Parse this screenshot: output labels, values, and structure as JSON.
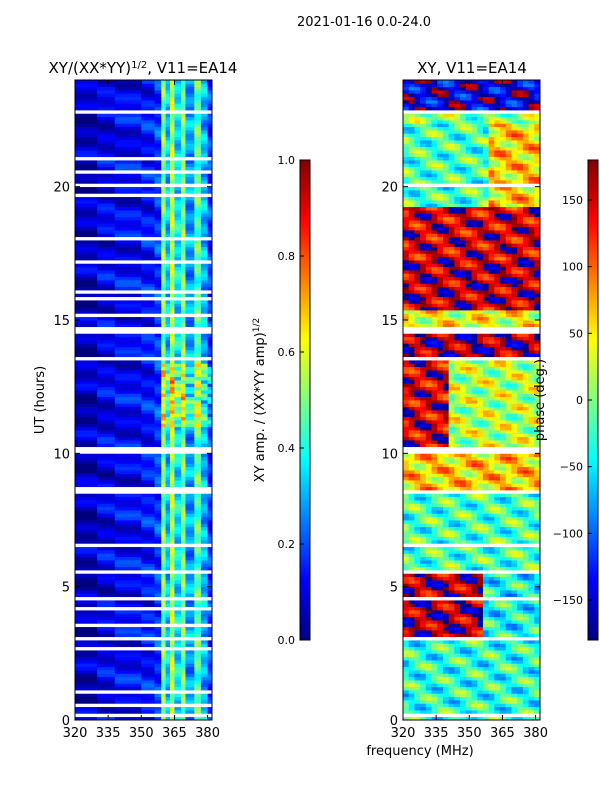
{
  "suptitle": "2021-01-16 0.0-24.0",
  "xlabel": "frequency (MHz)",
  "colors": {
    "masked_row": "#ffffff",
    "jet_stops": [
      "#00007f",
      "#0000ff",
      "#007fff",
      "#00ffff",
      "#7fff7f",
      "#ffff00",
      "#ff7f00",
      "#ff0000",
      "#7f0000"
    ]
  },
  "chart_data": [
    {
      "type": "heatmap",
      "title_main": "XY/(XX*YY)",
      "title_sup": "1/2",
      "title_suffix": ", V11=EA14",
      "xlabel": "",
      "ylabel": "UT (hours)",
      "x_range": [
        320,
        382
      ],
      "y_range": [
        0,
        24
      ],
      "xticks": [
        320,
        335,
        350,
        365,
        380
      ],
      "yticks": [
        0,
        5,
        10,
        15,
        20
      ],
      "colorbar": {
        "label_main": "XY amp. / (XX*YY amp)",
        "label_sup": "1/2",
        "range": [
          0.0,
          1.0
        ],
        "ticks": [
          "0.0",
          "0.2",
          "0.4",
          "0.6",
          "0.8",
          "1.0"
        ],
        "tick_values": [
          0.0,
          0.2,
          0.4,
          0.6,
          0.8,
          1.0
        ]
      },
      "masked_hour_bands": [
        [
          0.15,
          0.25
        ],
        [
          0.55,
          0.62
        ],
        [
          1.05,
          1.12
        ],
        [
          1.45,
          1.5
        ],
        [
          1.85,
          1.9
        ],
        [
          2.35,
          2.4
        ],
        [
          2.65,
          2.72
        ],
        [
          3.05,
          3.1
        ],
        [
          3.25,
          3.3
        ],
        [
          3.55,
          3.6
        ],
        [
          4.15,
          4.2
        ],
        [
          4.55,
          4.62
        ],
        [
          4.95,
          5.0
        ],
        [
          5.35,
          5.42
        ],
        [
          5.55,
          5.62
        ],
        [
          6.25,
          6.3
        ],
        [
          6.55,
          6.6
        ],
        [
          6.85,
          6.9
        ],
        [
          7.25,
          7.3
        ],
        [
          7.6,
          7.65
        ],
        [
          7.95,
          8.0
        ],
        [
          8.1,
          8.15
        ],
        [
          8.55,
          8.7
        ],
        [
          9.25,
          9.3
        ],
        [
          10.05,
          10.3
        ],
        [
          13.45,
          13.62
        ],
        [
          13.95,
          14.02
        ],
        [
          14.45,
          14.72
        ],
        [
          15.1,
          15.2
        ],
        [
          15.75,
          15.82
        ],
        [
          16.05,
          16.1
        ],
        [
          16.45,
          16.5
        ],
        [
          16.75,
          16.8
        ],
        [
          17.15,
          17.2
        ],
        [
          17.45,
          17.5
        ],
        [
          17.85,
          17.9
        ],
        [
          18.05,
          18.1
        ],
        [
          18.45,
          18.5
        ],
        [
          18.85,
          18.9
        ],
        [
          19.25,
          19.3
        ],
        [
          19.65,
          19.7
        ],
        [
          20.05,
          20.1
        ],
        [
          20.55,
          20.6
        ],
        [
          21.05,
          21.1
        ],
        [
          21.45,
          21.5
        ],
        [
          21.95,
          22.0
        ],
        [
          22.45,
          22.52
        ],
        [
          22.75,
          22.82
        ],
        [
          23.45,
          23.5
        ]
      ],
      "bands": [
        {
          "f_start": 320,
          "f_end": 330,
          "value": 0.06
        },
        {
          "f_start": 330,
          "f_end": 338,
          "value": 0.1
        },
        {
          "f_start": 338,
          "f_end": 350,
          "value": 0.12
        },
        {
          "f_start": 350,
          "f_end": 356,
          "value": 0.14
        },
        {
          "f_start": 356,
          "f_end": 359,
          "value": 0.18
        },
        {
          "f_start": 359,
          "f_end": 361,
          "value": 0.5
        },
        {
          "f_start": 361,
          "f_end": 363,
          "value": 0.32
        },
        {
          "f_start": 363,
          "f_end": 365,
          "value": 0.55
        },
        {
          "f_start": 365,
          "f_end": 368,
          "value": 0.35
        },
        {
          "f_start": 368,
          "f_end": 370,
          "value": 0.5
        },
        {
          "f_start": 370,
          "f_end": 374,
          "value": 0.28
        },
        {
          "f_start": 374,
          "f_end": 377,
          "value": 0.45
        },
        {
          "f_start": 377,
          "f_end": 380,
          "value": 0.3
        },
        {
          "f_start": 380,
          "f_end": 382,
          "value": 0.18
        }
      ]
    },
    {
      "type": "heatmap",
      "title_main": "XY, V11=EA14",
      "title_sup": "",
      "title_suffix": "",
      "xlabel": "",
      "ylabel": "",
      "x_range": [
        320,
        382
      ],
      "y_range": [
        0,
        24
      ],
      "xticks": [
        320,
        335,
        350,
        365,
        380
      ],
      "yticks": [
        0,
        5,
        10,
        15,
        20
      ],
      "colorbar": {
        "label_main": "phase (deg.)",
        "label_sup": "",
        "range": [
          -180,
          180
        ],
        "ticks": [
          "−150",
          "−100",
          "−50",
          "0",
          "50",
          "100",
          "150"
        ],
        "tick_values": [
          -150,
          -100,
          -50,
          0,
          50,
          100,
          150
        ]
      },
      "masked_hour_bands": [
        [
          0.15,
          0.2
        ],
        [
          1.45,
          1.5
        ],
        [
          2.35,
          2.4
        ],
        [
          3.05,
          3.1
        ],
        [
          4.55,
          4.6
        ],
        [
          5.55,
          5.62
        ],
        [
          6.55,
          6.6
        ],
        [
          7.6,
          7.65
        ],
        [
          8.1,
          8.15
        ],
        [
          8.55,
          8.65
        ],
        [
          10.05,
          10.3
        ],
        [
          13.45,
          13.6
        ],
        [
          14.45,
          14.7
        ],
        [
          16.75,
          16.8
        ],
        [
          17.85,
          17.9
        ],
        [
          18.85,
          18.9
        ],
        [
          20.05,
          20.1
        ],
        [
          21.45,
          21.5
        ],
        [
          22.45,
          22.55
        ],
        [
          22.75,
          22.85
        ]
      ],
      "phase_regions": [
        {
          "h_start": 0,
          "h_end": 3,
          "f_start": 320,
          "f_end": 382,
          "phase": -30
        },
        {
          "h_start": 3,
          "h_end": 5.6,
          "f_start": 320,
          "f_end": 355,
          "phase": 165
        },
        {
          "h_start": 3,
          "h_end": 5.6,
          "f_start": 355,
          "f_end": 382,
          "phase": -40
        },
        {
          "h_start": 5.6,
          "h_end": 8.6,
          "f_start": 320,
          "f_end": 382,
          "phase": -20
        },
        {
          "h_start": 8.6,
          "h_end": 10.1,
          "f_start": 320,
          "f_end": 382,
          "phase": 60
        },
        {
          "h_start": 10.3,
          "h_end": 13.5,
          "f_start": 320,
          "f_end": 340,
          "phase": 150
        },
        {
          "h_start": 10.3,
          "h_end": 13.5,
          "f_start": 340,
          "f_end": 382,
          "phase": 20
        },
        {
          "h_start": 13.6,
          "h_end": 14.5,
          "f_start": 320,
          "f_end": 382,
          "phase": 170
        },
        {
          "h_start": 14.7,
          "h_end": 15.4,
          "f_start": 320,
          "f_end": 382,
          "phase": 40
        },
        {
          "h_start": 15.4,
          "h_end": 17.3,
          "f_start": 320,
          "f_end": 382,
          "phase": 160
        },
        {
          "h_start": 17.3,
          "h_end": 19.2,
          "f_start": 320,
          "f_end": 382,
          "phase": 150
        },
        {
          "h_start": 19.2,
          "h_end": 22.4,
          "f_start": 320,
          "f_end": 358,
          "phase": -20
        },
        {
          "h_start": 19.2,
          "h_end": 22.4,
          "f_start": 358,
          "f_end": 382,
          "phase": 60
        },
        {
          "h_start": 22.8,
          "h_end": 24,
          "f_start": 320,
          "f_end": 382,
          "phase": -150
        }
      ]
    }
  ]
}
